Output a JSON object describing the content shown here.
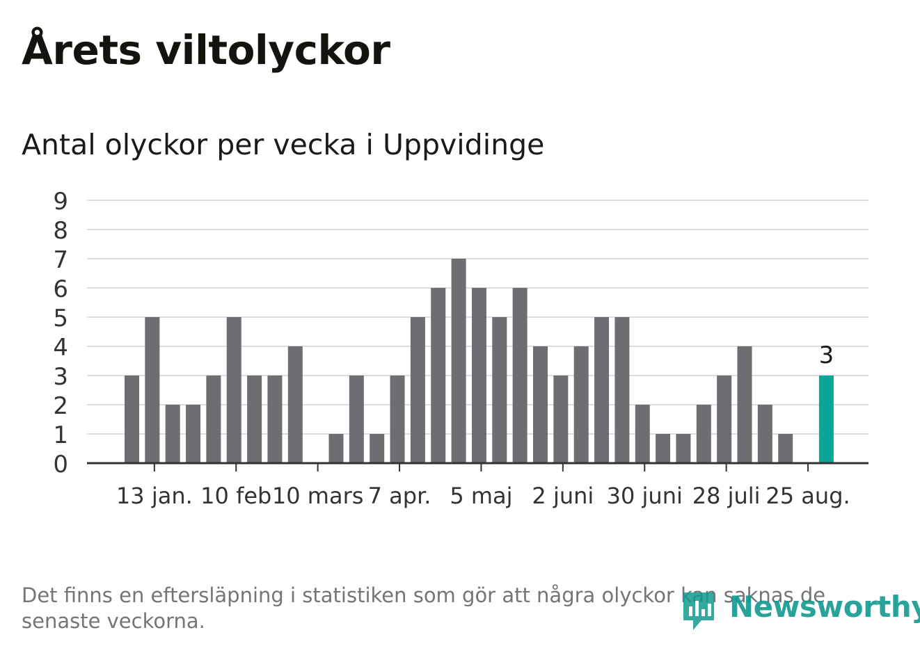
{
  "header": {
    "title": "Årets viltolyckor",
    "subtitle": "Antal olyckor per vecka i Uppvidinge"
  },
  "footer": {
    "note": "Det finns en eftersläpning i statistiken som gör att några olyckor kan saknas de senaste veckorna.",
    "logo_text": "Newsworthy"
  },
  "colors": {
    "bar": "#6d6d72",
    "highlight": "#0aa59a",
    "grid": "#dddddd",
    "axis": "#333333",
    "logo": "#109a8f"
  },
  "chart_data": {
    "type": "bar",
    "title": "",
    "xlabel": "",
    "ylabel": "",
    "ylim": [
      0,
      9
    ],
    "yticks": [
      0,
      1,
      2,
      3,
      4,
      5,
      6,
      7,
      8,
      9
    ],
    "grid": true,
    "weeks": [
      "1",
      "2",
      "3",
      "4",
      "5",
      "6",
      "7",
      "8",
      "9",
      "10",
      "11",
      "12",
      "13",
      "14",
      "15",
      "16",
      "17",
      "18",
      "19",
      "20",
      "21",
      "22",
      "23",
      "24",
      "25",
      "26",
      "27",
      "28",
      "29",
      "30",
      "31",
      "32",
      "33",
      "34",
      "35"
    ],
    "values": [
      3,
      5,
      2,
      2,
      3,
      5,
      3,
      3,
      4,
      0,
      1,
      3,
      1,
      3,
      5,
      6,
      7,
      6,
      5,
      6,
      4,
      3,
      4,
      5,
      5,
      2,
      1,
      1,
      2,
      3,
      4,
      2,
      1,
      0,
      3
    ],
    "highlight_index": 34,
    "highlight_label": "3",
    "xtick_labels": [
      {
        "label": "13 jan.",
        "week_index": 1
      },
      {
        "label": "10 feb",
        "week_index": 5
      },
      {
        "label": "10 mars",
        "week_index": 9
      },
      {
        "label": "7 apr.",
        "week_index": 13
      },
      {
        "label": "5 maj",
        "week_index": 17
      },
      {
        "label": "2 juni",
        "week_index": 21
      },
      {
        "label": "30 juni",
        "week_index": 25
      },
      {
        "label": "28 juli",
        "week_index": 29
      },
      {
        "label": "25 aug.",
        "week_index": 33
      }
    ]
  }
}
